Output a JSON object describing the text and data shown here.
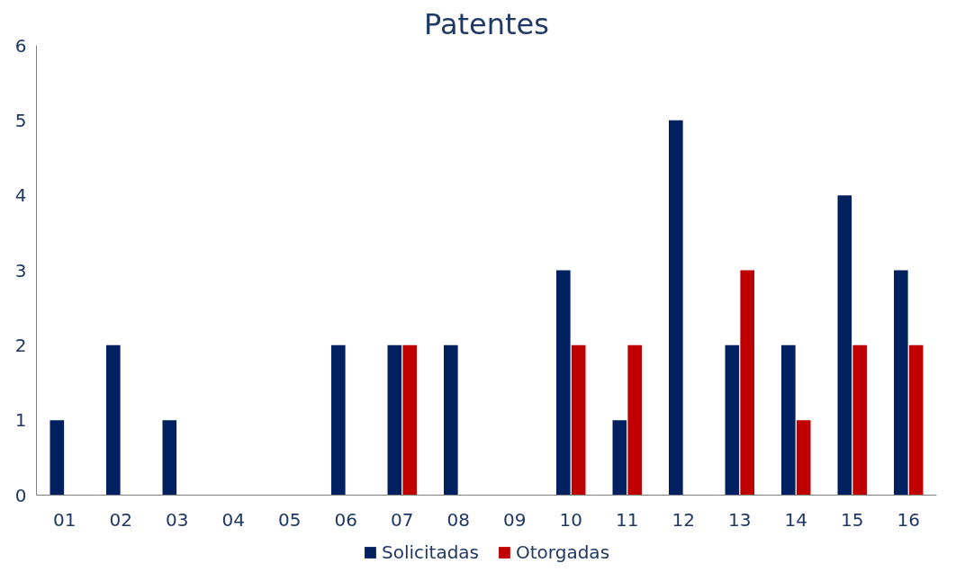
{
  "chart_data": {
    "type": "bar",
    "title": "Patentes",
    "categories": [
      "01",
      "02",
      "03",
      "04",
      "05",
      "06",
      "07",
      "08",
      "09",
      "10",
      "11",
      "12",
      "13",
      "14",
      "15",
      "16"
    ],
    "series": [
      {
        "name": "Solicitadas",
        "color": "#002060",
        "values": [
          1,
          2,
          1,
          0,
          0,
          2,
          2,
          2,
          0,
          3,
          1,
          5,
          2,
          2,
          4,
          3
        ]
      },
      {
        "name": "Otorgadas",
        "color": "#c00000",
        "values": [
          0,
          0,
          0,
          0,
          0,
          0,
          2,
          0,
          0,
          2,
          2,
          0,
          3,
          1,
          2,
          2
        ]
      }
    ],
    "ylim": [
      0,
      6
    ],
    "yticks": [
      0,
      1,
      2,
      3,
      4,
      5,
      6
    ],
    "grid": false,
    "legend": "bottom"
  }
}
